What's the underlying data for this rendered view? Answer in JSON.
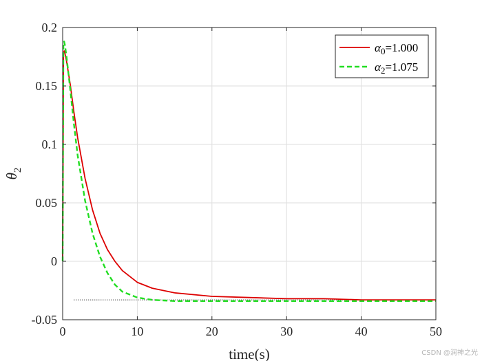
{
  "chart_data": {
    "type": "line",
    "xlabel": "time(s)",
    "ylabel": "θ",
    "ylabel_sub": "2",
    "xlim": [
      0,
      50
    ],
    "ylim": [
      -0.05,
      0.2
    ],
    "xticks": [
      0,
      10,
      20,
      30,
      40,
      50
    ],
    "yticks": [
      -0.05,
      0,
      0.05,
      0.1,
      0.15,
      0.2
    ],
    "xtick_labels": [
      "0",
      "10",
      "20",
      "30",
      "40",
      "50"
    ],
    "ytick_labels": [
      "-0.05",
      "0",
      "0.05",
      "0.1",
      "0.15",
      "0.2"
    ],
    "grid": true,
    "legend_position": "top-right",
    "reference_line": {
      "y": -0.033,
      "style": "dotted"
    },
    "series": [
      {
        "name_symbol": "α",
        "name_sub": "0",
        "name_value": "=1.000",
        "color": "#dd0000",
        "style": "solid",
        "x": [
          0,
          0.1,
          0.2,
          0.3,
          0.5,
          1,
          1.5,
          2,
          3,
          4,
          5,
          6,
          7,
          8,
          10,
          12,
          15,
          20,
          25,
          30,
          35,
          40,
          45,
          50
        ],
        "y": [
          0,
          0.178,
          0.18,
          0.178,
          0.172,
          0.152,
          0.128,
          0.106,
          0.071,
          0.044,
          0.024,
          0.01,
          0.0,
          -0.008,
          -0.018,
          -0.023,
          -0.027,
          -0.03,
          -0.031,
          -0.032,
          -0.032,
          -0.033,
          -0.033,
          -0.033
        ]
      },
      {
        "name_symbol": "α",
        "name_sub": "2",
        "name_value": "=1.075",
        "color": "#22dd22",
        "style": "dashed",
        "x": [
          0,
          0.1,
          0.2,
          0.3,
          0.5,
          1,
          1.5,
          2,
          3,
          4,
          5,
          6,
          7,
          8,
          10,
          12,
          15,
          20,
          25,
          30,
          35,
          40,
          45,
          50
        ],
        "y": [
          0,
          0.186,
          0.188,
          0.185,
          0.176,
          0.148,
          0.118,
          0.091,
          0.052,
          0.024,
          0.004,
          -0.01,
          -0.02,
          -0.026,
          -0.031,
          -0.033,
          -0.034,
          -0.034,
          -0.034,
          -0.034,
          -0.034,
          -0.034,
          -0.034,
          -0.034
        ]
      }
    ]
  },
  "watermark": "CSDN @润神之光"
}
